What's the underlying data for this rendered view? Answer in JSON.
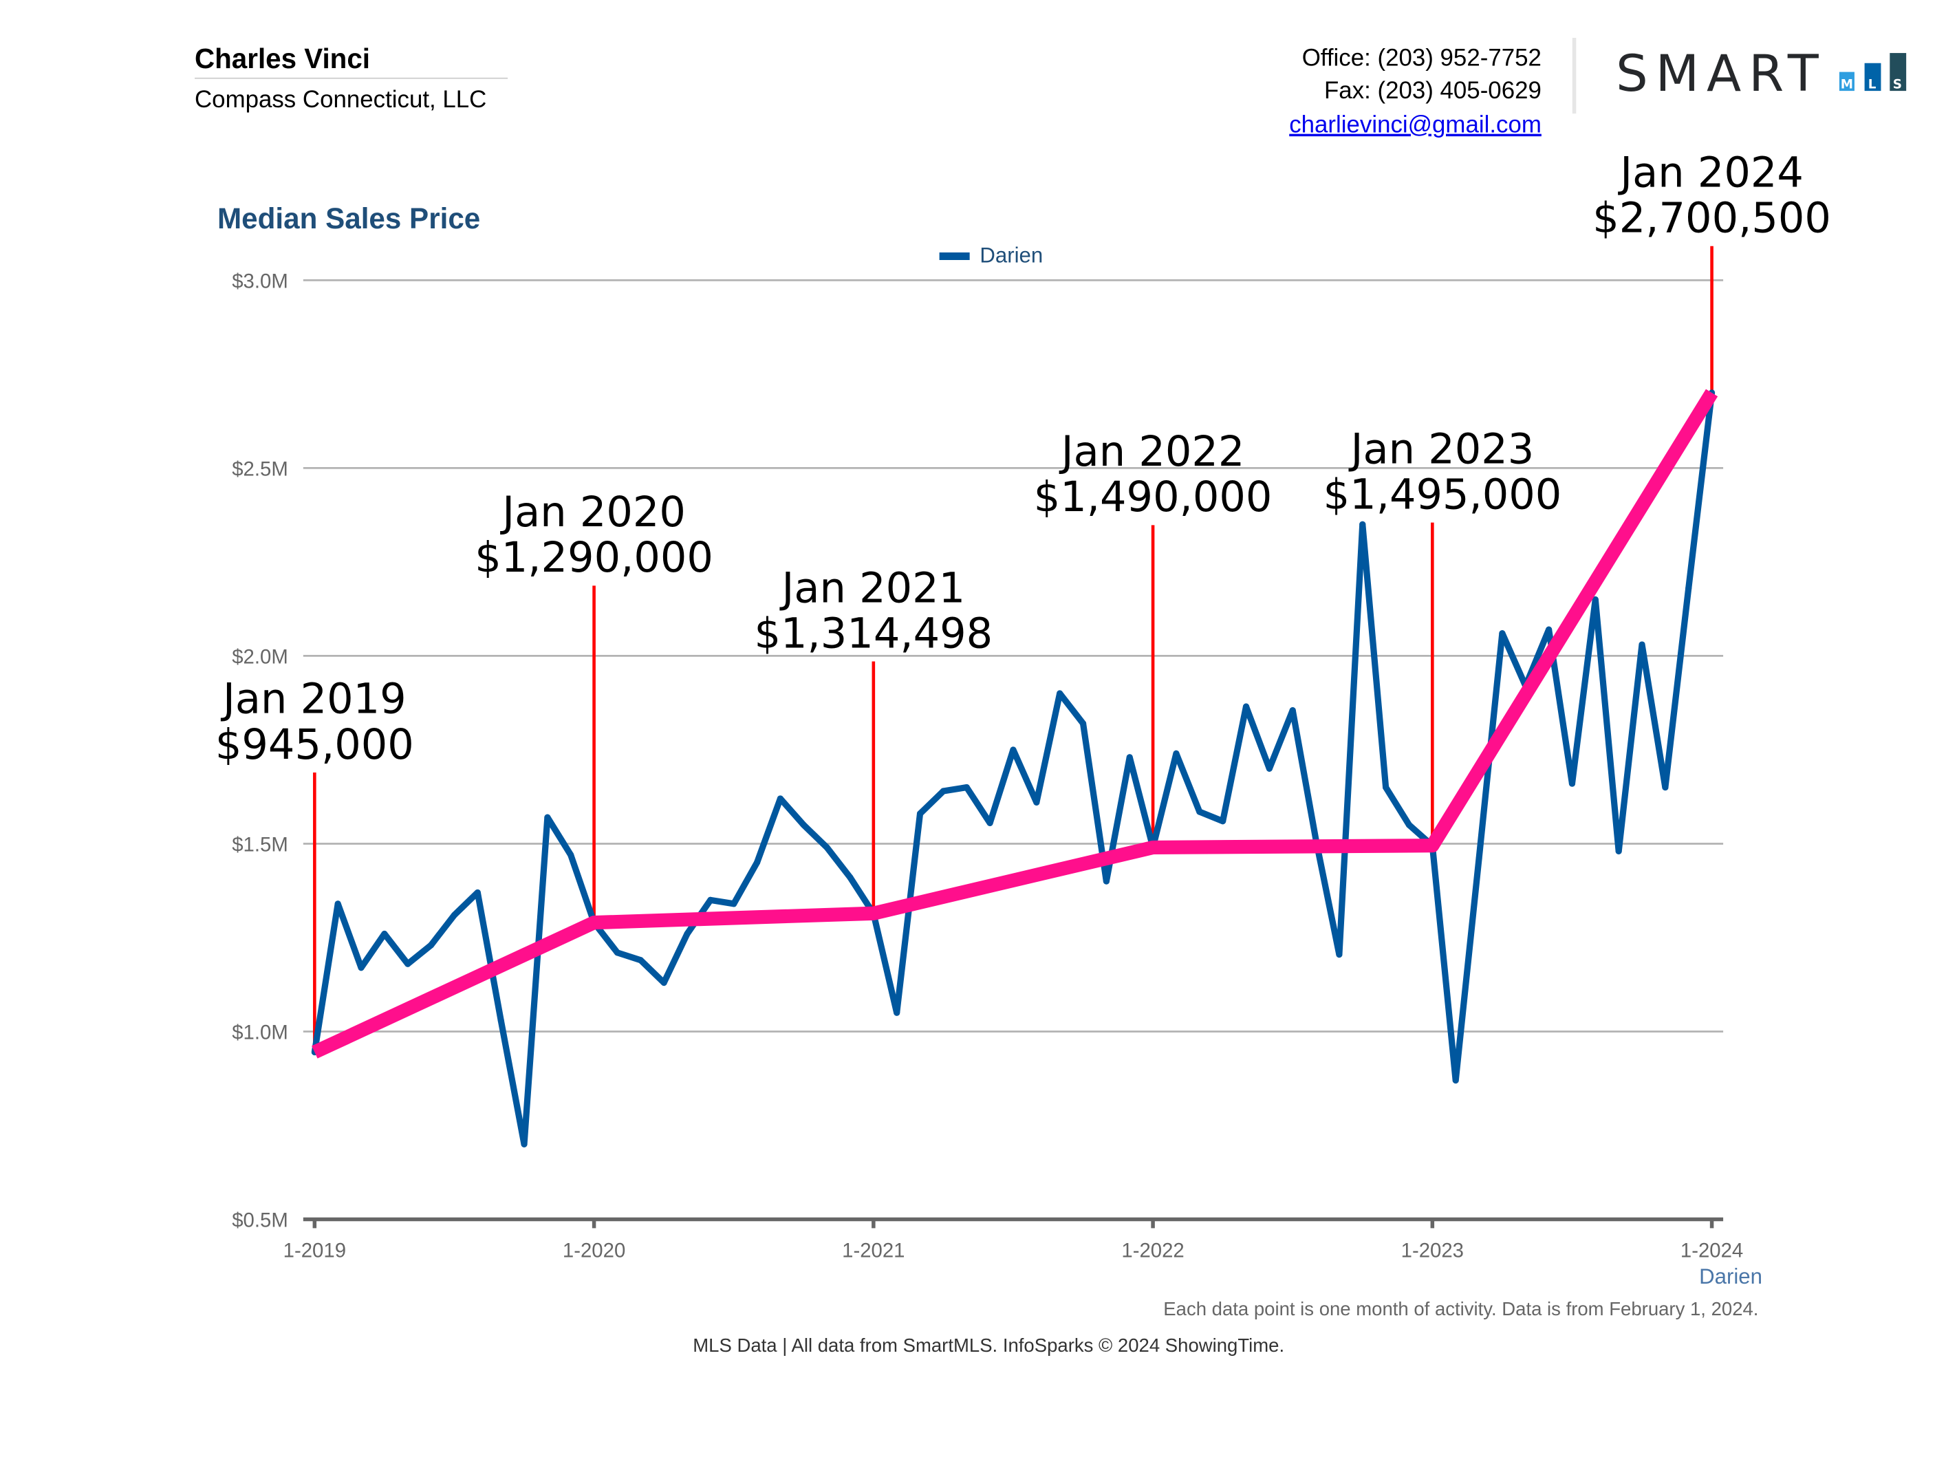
{
  "header": {
    "agent_name": "Charles Vinci",
    "company": "Compass Connecticut, LLC",
    "office": "Office: (203) 952-7752",
    "fax": "Fax: (203) 405-0629",
    "email": "charlievinci@gmail.com",
    "logo_text": "SMART",
    "logo_letters": [
      "M",
      "L",
      "S"
    ]
  },
  "footer": {
    "note": "Each data point is one month of activity. Data is from February 1, 2024.",
    "source": "MLS Data | All data from SmartMLS. InfoSparks © 2024 ShowingTime."
  },
  "colors": {
    "series": "#00579e",
    "trend": "#ff0f8c",
    "annotation_line": "#ff0000",
    "title": "#1f4e79"
  },
  "chart_data": {
    "type": "line",
    "title": "Median Sales Price",
    "legend": "top-center",
    "xlabel": "Darien",
    "ylim": [
      0.5,
      3.0
    ],
    "y_ticks": [
      "$0.5M",
      "$1.0M",
      "$1.5M",
      "$2.0M",
      "$2.5M",
      "$3.0M"
    ],
    "x_ticks": [
      "1-2019",
      "1-2020",
      "1-2021",
      "1-2022",
      "1-2023",
      "1-2024"
    ],
    "grid": true,
    "series": [
      {
        "name": "Darien",
        "start": "1-2019",
        "unit": "$M",
        "values": [
          0.945,
          1.34,
          1.17,
          1.26,
          1.18,
          1.23,
          1.31,
          1.37,
          1.03,
          0.7,
          1.57,
          1.47,
          1.29,
          1.21,
          1.19,
          1.13,
          1.26,
          1.35,
          1.34,
          1.45,
          1.62,
          1.55,
          1.49,
          1.41,
          1.314,
          1.05,
          1.58,
          1.64,
          1.65,
          1.555,
          1.75,
          1.61,
          1.9,
          1.82,
          1.4,
          1.73,
          1.49,
          1.74,
          1.585,
          1.56,
          1.865,
          1.7,
          1.855,
          1.51,
          1.205,
          2.35,
          1.65,
          1.55,
          1.495,
          0.87,
          1.46,
          2.06,
          1.92,
          2.07,
          1.66,
          2.15,
          1.48,
          2.03,
          1.65,
          2.18,
          2.7005
        ]
      }
    ],
    "annotations": [
      {
        "label": "Jan 2019",
        "value": "$945,000",
        "month_index": 0,
        "y": 0.945
      },
      {
        "label": "Jan 2020",
        "value": "$1,290,000",
        "month_index": 12,
        "y": 1.29
      },
      {
        "label": "Jan 2021",
        "value": "$1,314,498",
        "month_index": 24,
        "y": 1.314498
      },
      {
        "label": "Jan 2022",
        "value": "$1,490,000",
        "month_index": 36,
        "y": 1.49
      },
      {
        "label": "Jan 2023",
        "value": "$1,495,000",
        "month_index": 48,
        "y": 1.495
      },
      {
        "label": "Jan 2024",
        "value": "$2,700,500",
        "month_index": 60,
        "y": 2.7005
      }
    ]
  }
}
